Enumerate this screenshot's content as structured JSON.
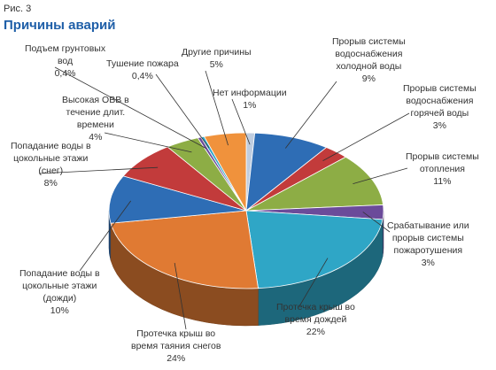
{
  "figure_label": "Рис. 3",
  "chart_data": {
    "type": "pie",
    "title": "Причины аварий",
    "unit": "%",
    "slices": [
      {
        "label": "Нет информации",
        "value": 1,
        "value_label": "1%",
        "color": "#bfcde0"
      },
      {
        "label": "Прорыв системы\nводоснабжения\nхолодной воды",
        "value": 9,
        "value_label": "9%",
        "color": "#2e6db5"
      },
      {
        "label": "Прорыв системы\nводоснабжения\nгорячей воды",
        "value": 3,
        "value_label": "3%",
        "color": "#c23b3b"
      },
      {
        "label": "Прорыв системы\nотопления",
        "value": 11,
        "value_label": "11%",
        "color": "#8dad45"
      },
      {
        "label": "Срабатывание или\nпрорыв системы\nпожаротушения",
        "value": 3,
        "value_label": "3%",
        "color": "#6b4b9a"
      },
      {
        "label": "Протечка крыш во\nвремя дождей",
        "value": 22,
        "value_label": "22%",
        "color": "#2fa6c6"
      },
      {
        "label": "Протечка крыш во\nвремя таяния снегов",
        "value": 24,
        "value_label": "24%",
        "color": "#e07a33"
      },
      {
        "label": "Попадание воды в\nцокольные этажи\n(дожди)",
        "value": 10,
        "value_label": "10%",
        "color": "#2e6db5"
      },
      {
        "label": "Попадание воды в\nцокольные этажи\n(снег)",
        "value": 8,
        "value_label": "8%",
        "color": "#c23b3b"
      },
      {
        "label": "Высокая ОВВ в\nтечение длит.\nвремени",
        "value": 4,
        "value_label": "4%",
        "color": "#8dad45"
      },
      {
        "label": "Подъем грунтовых\nвод",
        "value": 0.4,
        "value_label": "0,4%",
        "color": "#6b4b9a"
      },
      {
        "label": "Тушение пожара",
        "value": 0.4,
        "value_label": "0,4%",
        "color": "#2fa6c6"
      },
      {
        "label": "Другие причины",
        "value": 5,
        "value_label": "5%",
        "color": "#f0923c"
      }
    ]
  }
}
